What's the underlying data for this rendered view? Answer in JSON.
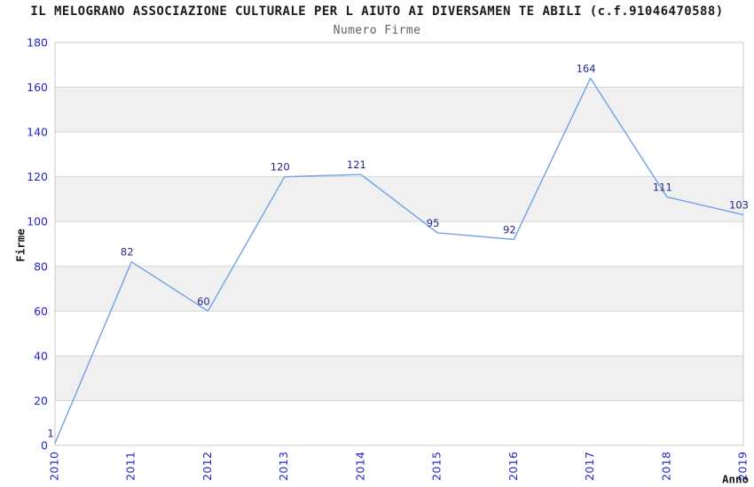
{
  "chart_data": {
    "type": "line",
    "title": "IL MELOGRANO ASSOCIAZIONE CULTURALE PER L AIUTO AI DIVERSAMEN TE ABILI (c.f.91046470588)",
    "subtitle": "Numero Firme",
    "xlabel": "Anno",
    "ylabel": "Firme",
    "x": [
      "2010",
      "2011",
      "2012",
      "2013",
      "2014",
      "2015",
      "2016",
      "2017",
      "2018",
      "2019"
    ],
    "values": [
      1,
      82,
      60,
      120,
      121,
      95,
      92,
      164,
      111,
      103
    ],
    "ylim": [
      0,
      180
    ],
    "ytick_step": 20,
    "grid": true,
    "alternating_bands": true,
    "legend_position": "none",
    "colors": {
      "line": "#6fa1e6",
      "tick_labels": "#2424cf",
      "data_labels": "#26268f",
      "band": "#f0f0f0",
      "gridline": "#d6d6d6",
      "border": "#c9c9c9",
      "title": "#1a1a1a",
      "subtitle": "#606060",
      "axis_titles": "#1a1a1a",
      "background": "#ffffff"
    }
  }
}
